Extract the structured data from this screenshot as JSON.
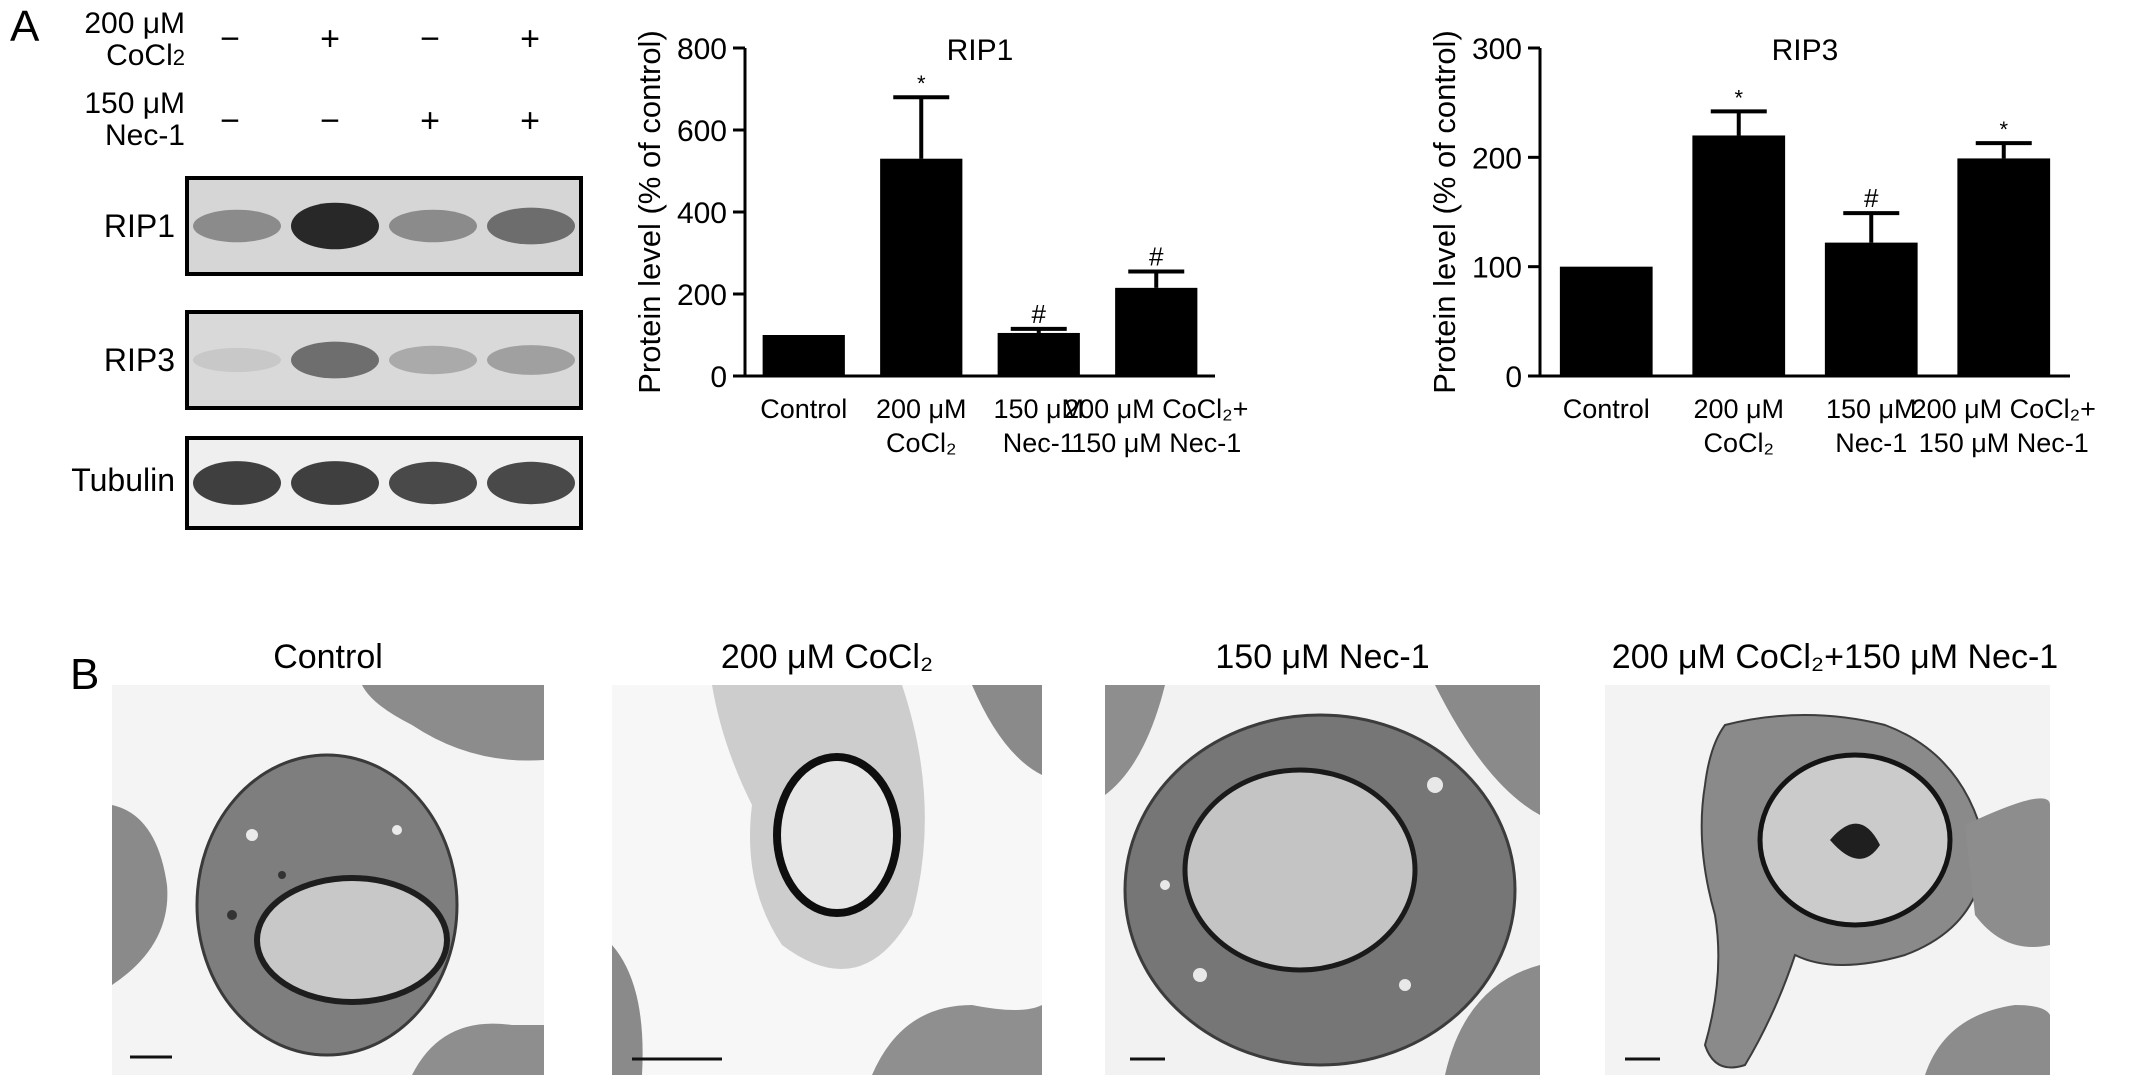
{
  "panel_a": {
    "letter": "A",
    "treatments": [
      {
        "line1": "200 μM",
        "line2": "CoCl",
        "sub": "2",
        "signs": [
          "−",
          "+",
          "−",
          "+"
        ]
      },
      {
        "line1": "150 μM",
        "line2": "Nec-1",
        "sub": "",
        "signs": [
          "−",
          "−",
          "+",
          "+"
        ]
      }
    ],
    "blots": [
      {
        "label": "RIP1",
        "intensity": [
          0.45,
          0.95,
          0.45,
          0.6
        ]
      },
      {
        "label": "RIP3",
        "intensity": [
          0.15,
          0.6,
          0.3,
          0.35
        ]
      },
      {
        "label": "Tubulin",
        "intensity": [
          0.85,
          0.85,
          0.8,
          0.8
        ]
      }
    ]
  },
  "panel_b": {
    "letter": "B",
    "images": [
      {
        "title": "Control"
      },
      {
        "title": "200 μM CoCl₂"
      },
      {
        "title": "150 μM Nec-1"
      },
      {
        "title": "200 μM CoCl₂+150 μM Nec-1"
      }
    ]
  },
  "chart_data": [
    {
      "type": "bar",
      "title": "RIP1",
      "ylabel": "Protein level (% of control)",
      "ylim": [
        0,
        800
      ],
      "yticks": [
        0,
        200,
        400,
        600,
        800
      ],
      "categories": [
        [
          "Control"
        ],
        [
          "200 μM",
          "CoCl₂"
        ],
        [
          "150 μM",
          "Nec-1"
        ],
        [
          "200 μM CoCl₂+",
          "150 μM Nec-1"
        ]
      ],
      "values": [
        100,
        530,
        105,
        215
      ],
      "errors": [
        0,
        150,
        10,
        40
      ],
      "annotations": [
        "",
        "*",
        "#",
        "#"
      ],
      "bar_color": "#000000"
    },
    {
      "type": "bar",
      "title": "RIP3",
      "ylabel": "Protein level (% of control)",
      "ylim": [
        0,
        300
      ],
      "yticks": [
        0,
        100,
        200,
        300
      ],
      "categories": [
        [
          "Control"
        ],
        [
          "200 μM",
          "CoCl₂"
        ],
        [
          "150 μM",
          "Nec-1"
        ],
        [
          "200 μM CoCl₂+",
          "150 μM Nec-1"
        ]
      ],
      "values": [
        100,
        220,
        122,
        199
      ],
      "errors": [
        0,
        22,
        27,
        14
      ],
      "annotations": [
        "",
        "*",
        "#",
        "*"
      ],
      "bar_color": "#000000"
    }
  ]
}
